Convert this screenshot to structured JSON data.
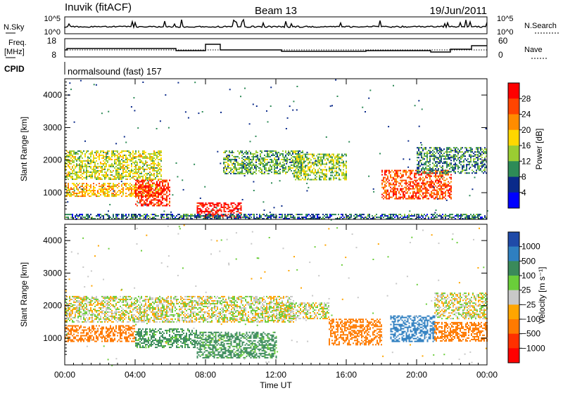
{
  "header": {
    "station": "Inuvik (fitACF)",
    "beam": "Beam 13",
    "date": "19/Jun/2011"
  },
  "sky_panel": {
    "left_label": "N.Sky",
    "left_ticks": [
      "10^5",
      "10^0"
    ],
    "right_label": "N.Search",
    "right_ticks": [
      "10^5",
      "10^0"
    ]
  },
  "freq_panel": {
    "left_label_1": "Freq.",
    "left_label_2": "[MHz]",
    "left_ticks": [
      "18",
      "8"
    ],
    "right_label": "Nave",
    "right_ticks": [
      "60",
      "0"
    ]
  },
  "cpid": {
    "label": "CPID",
    "program": "normalsound (fast) 157"
  },
  "x_axis": {
    "label": "Time UT",
    "ticks": [
      "00:00",
      "04:00",
      "08:00",
      "12:00",
      "16:00",
      "20:00",
      "00:00"
    ]
  },
  "power_colorbar": {
    "label": "Power [dB]",
    "ticks": [
      "28",
      "24",
      "20",
      "16",
      "12",
      "8",
      "4"
    ],
    "colors": [
      "#ff0000",
      "#ff4500",
      "#ff8c00",
      "#ffd700",
      "#9acd32",
      "#2e8b57",
      "#0a2a8a",
      "#0000ff"
    ]
  },
  "velocity_colorbar": {
    "label": "Velocity [m s⁻¹]",
    "ticks": [
      "1000",
      "500",
      "100",
      "25",
      "−25",
      "−100",
      "−500",
      "−1000"
    ],
    "colors": [
      "#1f4aa8",
      "#2f7fc0",
      "#3a8a5a",
      "#6acd3a",
      "#c8c8c8",
      "#ffa500",
      "#ff7a00",
      "#ff3000",
      "#ff0000"
    ]
  },
  "chart_data": [
    {
      "type": "heatmap",
      "title": "Power",
      "ylabel": "Slant Range [km]",
      "xlabel": "Time UT",
      "ylim": [
        180,
        4500
      ],
      "xlim": [
        0,
        24
      ],
      "yticks": [
        1000,
        2000,
        3000,
        4000
      ],
      "x_ticks_hours": [
        0,
        4,
        8,
        12,
        16,
        20,
        24
      ],
      "clim": [
        0,
        32
      ],
      "bands": [
        {
          "t": [
            0,
            5.5
          ],
          "r": [
            1400,
            2300
          ],
          "value": 16
        },
        {
          "t": [
            0,
            5.5
          ],
          "r": [
            900,
            1300
          ],
          "value": 20
        },
        {
          "t": [
            4,
            6
          ],
          "r": [
            600,
            1400
          ],
          "value": 28
        },
        {
          "t": [
            7.5,
            10
          ],
          "r": [
            250,
            700
          ],
          "value": 30
        },
        {
          "t": [
            9,
            13.5
          ],
          "r": [
            1600,
            2300
          ],
          "value": 12
        },
        {
          "t": [
            13,
            16
          ],
          "r": [
            1400,
            2200
          ],
          "value": 14
        },
        {
          "t": [
            18,
            22
          ],
          "r": [
            800,
            1700
          ],
          "value": 26
        },
        {
          "t": [
            20,
            24
          ],
          "r": [
            1600,
            2400
          ],
          "value": 10
        },
        {
          "t": [
            0,
            24
          ],
          "r": [
            180,
            350
          ],
          "value": 8
        }
      ]
    },
    {
      "type": "heatmap",
      "title": "Velocity",
      "ylabel": "Slant Range [km]",
      "xlabel": "Time UT",
      "ylim": [
        180,
        4500
      ],
      "xlim": [
        0,
        24
      ],
      "yticks": [
        1000,
        2000,
        3000,
        4000
      ],
      "x_ticks_hours": [
        0,
        4,
        8,
        12,
        16,
        20,
        24
      ],
      "clim": [
        -1000,
        1000
      ],
      "bands": [
        {
          "t": [
            0,
            13
          ],
          "r": [
            1500,
            2300
          ],
          "value": 0
        },
        {
          "t": [
            0,
            4
          ],
          "r": [
            900,
            1400
          ],
          "value": -200
        },
        {
          "t": [
            4,
            7.5
          ],
          "r": [
            700,
            1300
          ],
          "value": 150
        },
        {
          "t": [
            7.5,
            12
          ],
          "r": [
            400,
            1200
          ],
          "value": 150
        },
        {
          "t": [
            12,
            15
          ],
          "r": [
            1600,
            2100
          ],
          "value": 0
        },
        {
          "t": [
            15,
            18
          ],
          "r": [
            800,
            1600
          ],
          "value": -300
        },
        {
          "t": [
            18.5,
            21
          ],
          "r": [
            900,
            1700
          ],
          "value": 600
        },
        {
          "t": [
            21,
            24
          ],
          "r": [
            900,
            1500
          ],
          "value": -200
        },
        {
          "t": [
            21,
            24
          ],
          "r": [
            1600,
            2400
          ],
          "value": 0
        }
      ]
    }
  ]
}
